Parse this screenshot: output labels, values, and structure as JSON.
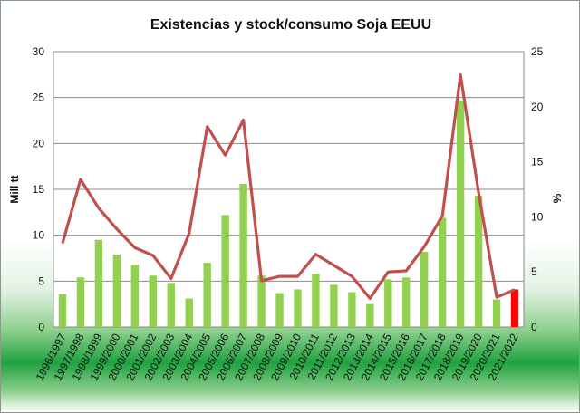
{
  "chart_data": {
    "type": "bar+line",
    "title": "Existencias y stock/consumo Soja EEUU",
    "ylabel": "Mill tt",
    "y2label": "%",
    "ylim": [
      0,
      30
    ],
    "y2lim": [
      0,
      25
    ],
    "yticks": [
      0,
      5,
      10,
      15,
      20,
      25,
      30
    ],
    "y2ticks": [
      0,
      5,
      10,
      15,
      20,
      25
    ],
    "grid": true,
    "categories": [
      "1996/1997",
      "1997/1998",
      "1998/1999",
      "1999/2000",
      "2000/2001",
      "2001/2002",
      "2002/2003",
      "2003/2004",
      "2004/2005",
      "2005/2006",
      "2006/2007",
      "2007/2008",
      "2008/2009",
      "2009/2010",
      "2010/2011",
      "2011/2012",
      "2012/2013",
      "2013/2014",
      "2014/2015",
      "2015/2016",
      "2016/2017",
      "2017/2018",
      "2018/2019",
      "2019/2020",
      "2020/2021",
      "2021/2022"
    ],
    "series": [
      {
        "kind": "bar",
        "axis": "left",
        "color": "#92d050",
        "highlight_last_color": "#ff0000",
        "values": [
          3.6,
          5.4,
          9.5,
          7.9,
          6.8,
          5.6,
          4.8,
          3.1,
          7.0,
          12.2,
          15.6,
          5.6,
          3.7,
          4.1,
          5.8,
          4.6,
          3.8,
          2.5,
          5.2,
          5.4,
          8.2,
          11.9,
          24.7,
          14.3,
          3.0,
          4.1
        ]
      },
      {
        "kind": "line",
        "axis": "right",
        "color": "#c0504d",
        "values": [
          7.6,
          13.4,
          10.8,
          8.9,
          7.2,
          6.5,
          4.4,
          8.5,
          18.2,
          15.6,
          18.8,
          4.2,
          4.6,
          4.6,
          6.6,
          5.6,
          4.6,
          2.6,
          5.0,
          5.1,
          7.3,
          10.1,
          22.9,
          12.2,
          2.7,
          3.4
        ]
      }
    ]
  }
}
